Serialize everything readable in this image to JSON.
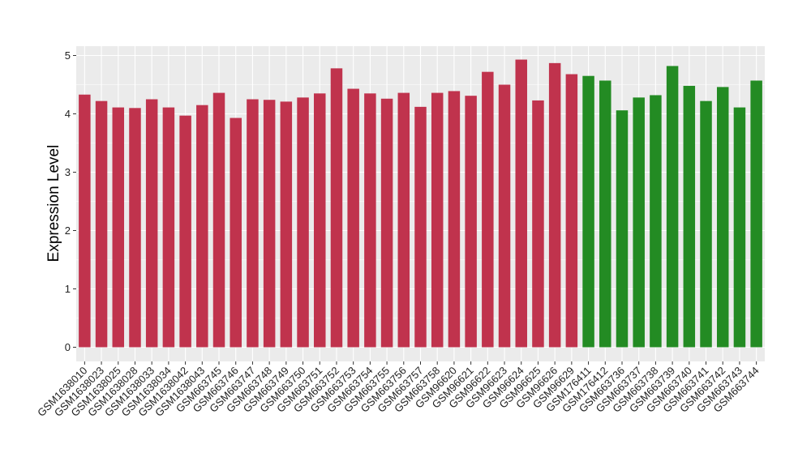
{
  "chart_data": {
    "type": "bar",
    "title": "",
    "xlabel": "",
    "ylabel": "Expression Level",
    "ylim": [
      0,
      5
    ],
    "yticks": [
      0,
      1,
      2,
      3,
      4,
      5
    ],
    "grid": true,
    "legend": "none",
    "panel_background": "#ebebeb",
    "gridline_color": "#ffffff",
    "colors": {
      "group_a": "#c0334d",
      "group_b": "#238b23"
    },
    "categories": [
      "GSM1638010",
      "GSM1638023",
      "GSM1638025",
      "GSM1638028",
      "GSM1638033",
      "GSM1638034",
      "GSM1638042",
      "GSM1638043",
      "GSM663745",
      "GSM663746",
      "GSM663747",
      "GSM663748",
      "GSM663749",
      "GSM663750",
      "GSM663751",
      "GSM663752",
      "GSM663753",
      "GSM663754",
      "GSM663755",
      "GSM663756",
      "GSM663757",
      "GSM663758",
      "GSM96620",
      "GSM96621",
      "GSM96622",
      "GSM96623",
      "GSM96624",
      "GSM96625",
      "GSM96626",
      "GSM96629",
      "GSM176411",
      "GSM176412",
      "GSM663736",
      "GSM663737",
      "GSM663738",
      "GSM663739",
      "GSM663740",
      "GSM663741",
      "GSM663742",
      "GSM663743",
      "GSM663744"
    ],
    "values": [
      4.33,
      4.22,
      4.11,
      4.1,
      4.25,
      4.11,
      3.97,
      4.15,
      4.36,
      3.93,
      4.25,
      4.24,
      4.21,
      4.28,
      4.35,
      4.78,
      4.43,
      4.35,
      4.26,
      4.36,
      4.12,
      4.36,
      4.39,
      4.31,
      4.72,
      4.5,
      4.93,
      4.23,
      4.87,
      4.68,
      4.65,
      4.57,
      4.06,
      4.28,
      4.32,
      4.82,
      4.48,
      4.22,
      4.46,
      4.11,
      4.57
    ],
    "groups": [
      "group_a",
      "group_a",
      "group_a",
      "group_a",
      "group_a",
      "group_a",
      "group_a",
      "group_a",
      "group_a",
      "group_a",
      "group_a",
      "group_a",
      "group_a",
      "group_a",
      "group_a",
      "group_a",
      "group_a",
      "group_a",
      "group_a",
      "group_a",
      "group_a",
      "group_a",
      "group_a",
      "group_a",
      "group_a",
      "group_a",
      "group_a",
      "group_a",
      "group_a",
      "group_a",
      "group_b",
      "group_b",
      "group_b",
      "group_b",
      "group_b",
      "group_b",
      "group_b",
      "group_b",
      "group_b",
      "group_b",
      "group_b"
    ]
  }
}
